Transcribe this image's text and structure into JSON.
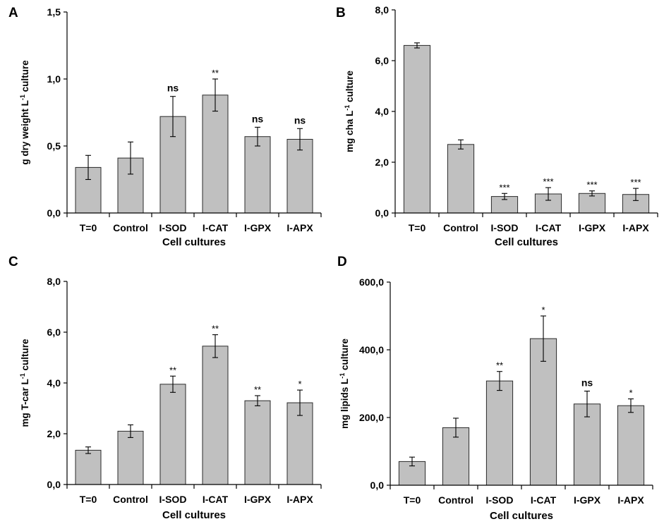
{
  "chart_data": [
    {
      "panel": "A",
      "type": "bar",
      "ylabel": "g dry weight L",
      "ylabel_sup": "-1",
      "ylabel_suffix": " culture",
      "xlabel": "Cell cultures",
      "ylim": [
        0,
        1.5
      ],
      "yticks": [
        "0,0",
        "0,5",
        "1,0",
        "1,5"
      ],
      "categories": [
        "T=0",
        "Control",
        "I-SOD",
        "I-CAT",
        "I-GPX",
        "I-APX"
      ],
      "values": [
        0.34,
        0.41,
        0.72,
        0.88,
        0.57,
        0.55
      ],
      "errors": [
        0.09,
        0.12,
        0.15,
        0.12,
        0.07,
        0.08
      ],
      "significance": [
        "",
        "",
        "ns",
        "**",
        "ns",
        "ns"
      ]
    },
    {
      "panel": "B",
      "type": "bar",
      "ylabel": "mg cha L",
      "ylabel_sup": "-1",
      "ylabel_suffix": " culture",
      "xlabel": "Cell cultures",
      "ylim": [
        0,
        8
      ],
      "yticks": [
        "0,0",
        "2,0",
        "4,0",
        "6,0",
        "8,0"
      ],
      "categories": [
        "T=0",
        "Control",
        "I-SOD",
        "I-CAT",
        "I-GPX",
        "I-APX"
      ],
      "values": [
        6.6,
        2.7,
        0.65,
        0.75,
        0.77,
        0.73
      ],
      "errors": [
        0.1,
        0.18,
        0.12,
        0.25,
        0.1,
        0.24
      ],
      "significance": [
        "",
        "",
        "***",
        "***",
        "***",
        "***"
      ]
    },
    {
      "panel": "C",
      "type": "bar",
      "ylabel": "mg T-car L",
      "ylabel_sup": "-1",
      "ylabel_suffix": " culture",
      "xlabel": "Cell cultures",
      "ylim": [
        0,
        8
      ],
      "yticks": [
        "0,0",
        "2,0",
        "4,0",
        "6,0",
        "8,0"
      ],
      "categories": [
        "T=0",
        "Control",
        "I-SOD",
        "I-CAT",
        "I-GPX",
        "I-APX"
      ],
      "values": [
        1.35,
        2.1,
        3.95,
        5.45,
        3.3,
        3.22
      ],
      "errors": [
        0.13,
        0.25,
        0.32,
        0.45,
        0.2,
        0.5
      ],
      "significance": [
        "",
        "",
        "**",
        "**",
        "**",
        "*"
      ]
    },
    {
      "panel": "D",
      "type": "bar",
      "ylabel": "mg lipids L",
      "ylabel_sup": "-1",
      "ylabel_suffix": " culture",
      "xlabel": "Cell cultures",
      "ylim": [
        0,
        600
      ],
      "yticks": [
        "0,0",
        "200,0",
        "400,0",
        "600,0"
      ],
      "categories": [
        "T=0",
        "Control",
        "I-SOD",
        "I-CAT",
        "I-GPX",
        "I-APX"
      ],
      "values": [
        70,
        170,
        308,
        433,
        240,
        235
      ],
      "errors": [
        13,
        28,
        28,
        67,
        38,
        20
      ],
      "significance": [
        "",
        "",
        "**",
        "*",
        "ns",
        "*"
      ]
    }
  ]
}
